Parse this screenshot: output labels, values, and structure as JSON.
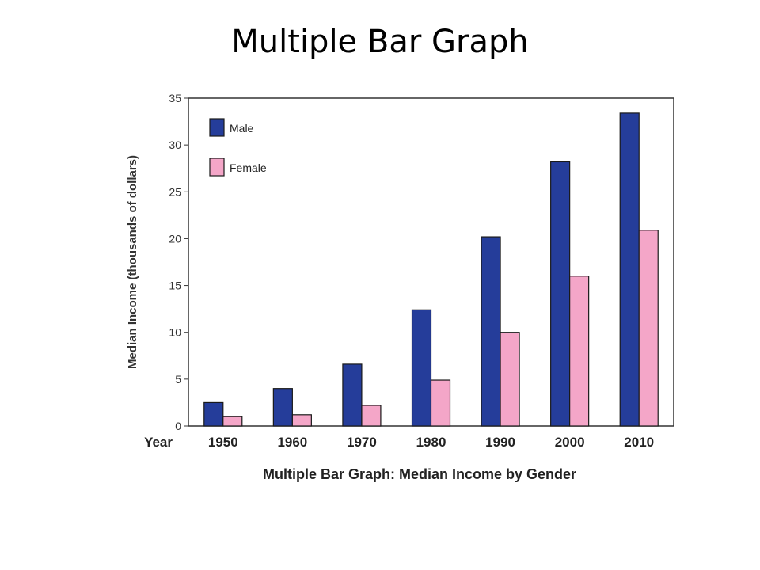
{
  "page_title": "Multiple Bar Graph",
  "chart_data": {
    "type": "bar",
    "title": "",
    "caption": "Multiple Bar Graph: Median Income by Gender",
    "xlabel": "Year",
    "ylabel": "Median Income (thousands of dollars)",
    "ylim": [
      0,
      35
    ],
    "yticks": [
      0,
      5,
      10,
      15,
      20,
      25,
      30,
      35
    ],
    "categories": [
      "1950",
      "1960",
      "1970",
      "1980",
      "1990",
      "2000",
      "2010"
    ],
    "series": [
      {
        "name": "Male",
        "color": "#253d9a",
        "values": [
          2.5,
          4.0,
          6.6,
          12.4,
          20.2,
          28.2,
          33.4
        ]
      },
      {
        "name": "Female",
        "color": "#f4a6c8",
        "values": [
          1.0,
          1.2,
          2.2,
          4.9,
          10.0,
          16.0,
          20.9
        ]
      }
    ],
    "legend_position": "top-left",
    "grid": false
  }
}
